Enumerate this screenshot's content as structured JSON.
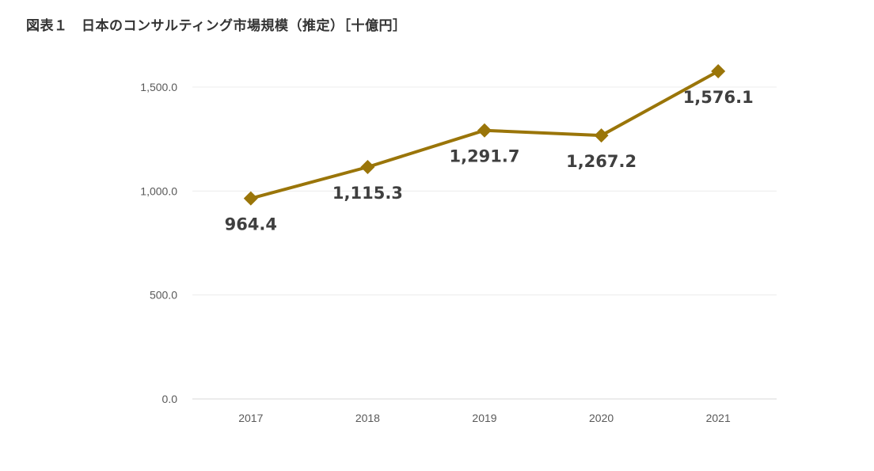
{
  "title": "図表１　日本のコンサルティング市場規模（推定）［十億円］",
  "colors": {
    "series": "#9a7509",
    "grid": "#ececec",
    "axis_text": "#595959",
    "label_text": "#3f3f3f"
  },
  "chart_data": {
    "type": "line",
    "title": "図表１　日本のコンサルティング市場規模（推定）［十億円］",
    "categories": [
      "2017",
      "2018",
      "2019",
      "2020",
      "2021"
    ],
    "values": [
      964.4,
      1115.3,
      1291.7,
      1267.2,
      1576.1
    ],
    "data_labels": [
      "964.4",
      "1,115.3",
      "1,291.7",
      "1,267.2",
      "1,576.1"
    ],
    "ylim": [
      0,
      1500
    ],
    "yticks": [
      0,
      500,
      1000,
      1500
    ],
    "ytick_labels": [
      "0.0",
      "500.0",
      "1,000.0",
      "1,500.0"
    ],
    "marker": "diamond",
    "grid": true,
    "legend": "none",
    "xlabel": "",
    "ylabel": ""
  }
}
